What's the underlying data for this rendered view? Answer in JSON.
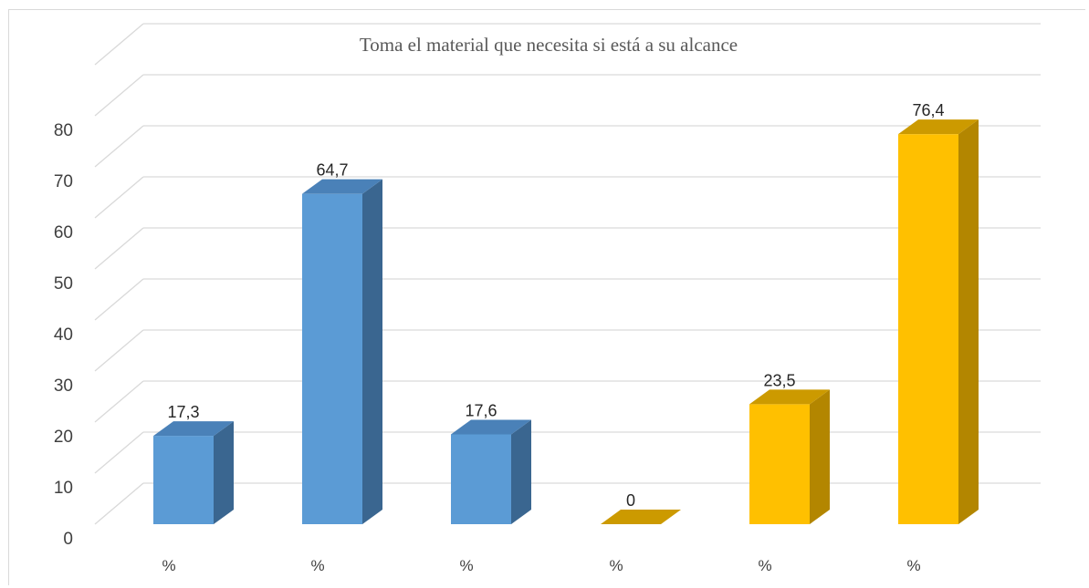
{
  "chart_data": {
    "type": "bar",
    "title": "Toma el material que necesita si está a su alcance",
    "categories": [
      "%",
      "%",
      "%",
      "%",
      "%",
      "%"
    ],
    "values": [
      17.3,
      64.7,
      17.6,
      0,
      23.5,
      76.4
    ],
    "data_labels": [
      "17,3",
      "64,7",
      "17,6",
      "0",
      "23,5",
      "76,4"
    ],
    "yticks": [
      "0",
      "10",
      "20",
      "30",
      "40",
      "50",
      "60",
      "70",
      "80"
    ],
    "ylim": [
      0,
      90
    ],
    "xlabel": "",
    "ylabel": "",
    "grid": true,
    "legend": "none",
    "three_d": true,
    "bar_colors": [
      "#5b9bd5",
      "#5b9bd5",
      "#5b9bd5",
      "#ffc000",
      "#ffc000",
      "#ffc000"
    ]
  }
}
